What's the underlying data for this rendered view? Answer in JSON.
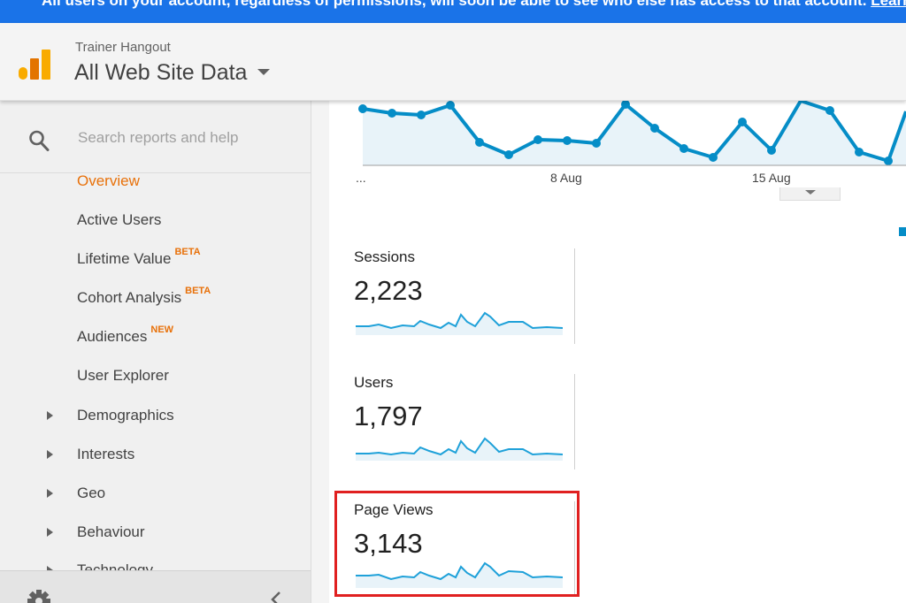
{
  "banner": {
    "text": "All users on your account, regardless of permissions, will soon be able to see who else has access to that account.",
    "link": "Learn"
  },
  "header": {
    "account": "Trainer Hangout",
    "property": "All Web Site Data"
  },
  "search": {
    "placeholder": "Search reports and help"
  },
  "nav": {
    "items": [
      {
        "label": "Overview",
        "badge": ""
      },
      {
        "label": "Active Users",
        "badge": ""
      },
      {
        "label": "Lifetime Value",
        "badge": "BETA"
      },
      {
        "label": "Cohort Analysis",
        "badge": "BETA"
      },
      {
        "label": "Audiences",
        "badge": "NEW"
      },
      {
        "label": "User Explorer",
        "badge": ""
      },
      {
        "label": "Demographics",
        "badge": ""
      },
      {
        "label": "Interests",
        "badge": ""
      },
      {
        "label": "Geo",
        "badge": ""
      },
      {
        "label": "Behaviour",
        "badge": ""
      },
      {
        "label": "Technology",
        "badge": ""
      }
    ]
  },
  "chart": {
    "x_labels": [
      "...",
      "8 Aug",
      "15 Aug"
    ]
  },
  "metrics": [
    {
      "label": "Sessions",
      "value": "2,223"
    },
    {
      "label": "Users",
      "value": "1,797"
    },
    {
      "label": "Page Views",
      "value": "3,143"
    }
  ],
  "colors": {
    "accent": "#e8710a",
    "banner": "#1a73e8",
    "line": "#058dc7",
    "area": "#e8f3f9",
    "highlight": "#e02020"
  }
}
